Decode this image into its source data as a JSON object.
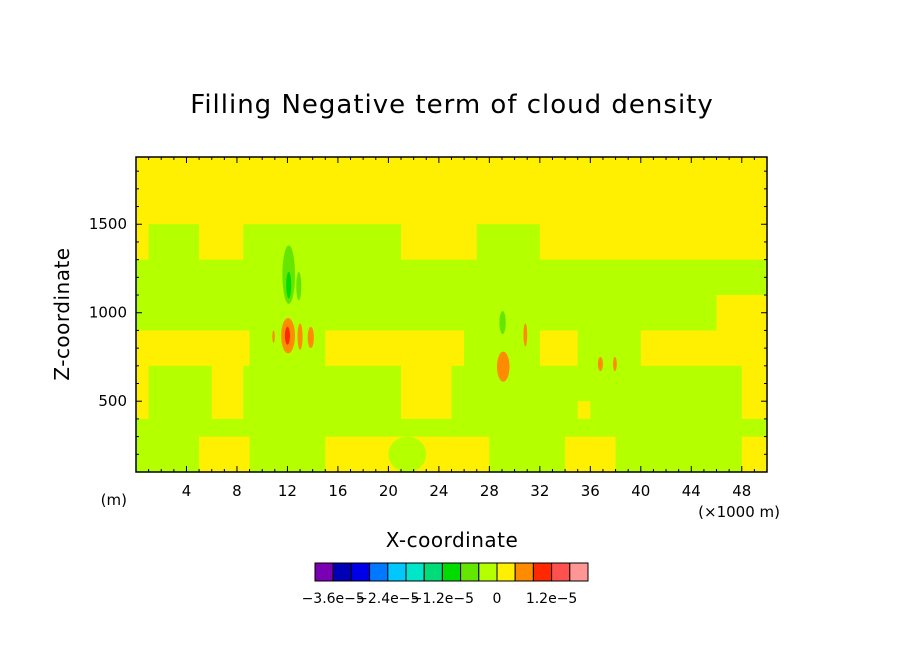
{
  "chart_data": {
    "type": "heatmap",
    "title": "Filling Negative term of cloud density",
    "xlabel": "X-coordinate",
    "ylabel": "Z-coordinate",
    "x_unit_label": "(×1000 m)",
    "y_unit_label": "(m)",
    "xlim": [
      0,
      50
    ],
    "ylim": [
      100,
      1880
    ],
    "x_ticks": [
      "4",
      "8",
      "12",
      "16",
      "20",
      "24",
      "28",
      "32",
      "36",
      "40",
      "44",
      "48"
    ],
    "x_tick_values": [
      4,
      8,
      12,
      16,
      20,
      24,
      28,
      32,
      36,
      40,
      44,
      48
    ],
    "y_ticks": [
      "500",
      "1000",
      "1500"
    ],
    "y_tick_values": [
      500,
      1000,
      1500
    ],
    "background_level_color": "#ffef00",
    "colorbar": {
      "colors": [
        "#7a00b4",
        "#0000b4",
        "#0000e6",
        "#0078ff",
        "#00c8ff",
        "#00e6c8",
        "#00dc78",
        "#00dc00",
        "#64e600",
        "#b4ff00",
        "#ffef00",
        "#ff8c00",
        "#ff2800",
        "#ff5050",
        "#ff9696"
      ],
      "labels": [
        "−3.6e−5",
        "−2.4e−5",
        "−1.2e−5",
        "0",
        "1.2e−5"
      ],
      "label_after_box": [
        1,
        4,
        7,
        10,
        13
      ]
    },
    "regions": [
      {
        "level": "#b4ff00",
        "x": [
          0,
          50
        ],
        "z": [
          1100,
          1300
        ]
      },
      {
        "level": "#b4ff00",
        "x": [
          1,
          5
        ],
        "z": [
          1100,
          1500
        ]
      },
      {
        "level": "#b4ff00",
        "x": [
          8.5,
          21
        ],
        "z": [
          1100,
          1500
        ]
      },
      {
        "level": "#b4ff00",
        "x": [
          27,
          32
        ],
        "z": [
          1100,
          1500
        ]
      },
      {
        "level": "#b4ff00",
        "x": [
          0,
          46
        ],
        "z": [
          900,
          1100
        ]
      },
      {
        "level": "#b4ff00",
        "x": [
          9,
          15
        ],
        "z": [
          650,
          1100
        ]
      },
      {
        "level": "#b4ff00",
        "x": [
          26,
          32
        ],
        "z": [
          600,
          1050
        ]
      },
      {
        "level": "#b4ff00",
        "x": [
          35,
          40
        ],
        "z": [
          500,
          1000
        ]
      },
      {
        "level": "#b4ff00",
        "x": [
          1,
          6
        ],
        "z": [
          400,
          700
        ]
      },
      {
        "level": "#b4ff00",
        "x": [
          8.5,
          21
        ],
        "z": [
          400,
          700
        ]
      },
      {
        "level": "#b4ff00",
        "x": [
          25,
          35
        ],
        "z": [
          300,
          700
        ]
      },
      {
        "level": "#b4ff00",
        "x": [
          36,
          48
        ],
        "z": [
          300,
          700
        ]
      },
      {
        "level": "#b4ff00",
        "x": [
          0,
          50
        ],
        "z": [
          300,
          400
        ]
      },
      {
        "level": "#b4ff00",
        "x": [
          0,
          5
        ],
        "z": [
          100,
          300
        ]
      },
      {
        "level": "#b4ff00",
        "x": [
          9,
          15
        ],
        "z": [
          100,
          300
        ]
      },
      {
        "level": "#b4ff00",
        "x": [
          20,
          23
        ],
        "z": [
          100,
          300
        ]
      },
      {
        "level": "#b4ff00",
        "x": [
          28,
          34
        ],
        "z": [
          100,
          300
        ]
      },
      {
        "level": "#b4ff00",
        "x": [
          38,
          48
        ],
        "z": [
          100,
          300
        ]
      },
      {
        "level": "#64e600",
        "x": [
          11.6,
          12.6
        ],
        "z": [
          1050,
          1380
        ]
      },
      {
        "level": "#64e600",
        "x": [
          12.7,
          13.1
        ],
        "z": [
          1070,
          1230
        ]
      },
      {
        "level": "#64e600",
        "x": [
          28.8,
          29.3
        ],
        "z": [
          880,
          1010
        ]
      },
      {
        "level": "#00dc00",
        "x": [
          11.9,
          12.3
        ],
        "z": [
          1080,
          1230
        ]
      },
      {
        "level": "#ff8c00",
        "x": [
          11.5,
          12.6
        ],
        "z": [
          770,
          970
        ]
      },
      {
        "level": "#ff8c00",
        "x": [
          12.8,
          13.2
        ],
        "z": [
          790,
          940
        ]
      },
      {
        "level": "#ff8c00",
        "x": [
          13.6,
          14.1
        ],
        "z": [
          800,
          920
        ]
      },
      {
        "level": "#ff8c00",
        "x": [
          10.8,
          11.0
        ],
        "z": [
          830,
          900
        ]
      },
      {
        "level": "#ff8c00",
        "x": [
          28.6,
          29.6
        ],
        "z": [
          610,
          780
        ]
      },
      {
        "level": "#ff8c00",
        "x": [
          30.7,
          31.0
        ],
        "z": [
          810,
          940
        ]
      },
      {
        "level": "#ff8c00",
        "x": [
          36.6,
          37.0
        ],
        "z": [
          670,
          750
        ]
      },
      {
        "level": "#ff8c00",
        "x": [
          37.8,
          38.1
        ],
        "z": [
          670,
          750
        ]
      },
      {
        "level": "#ff2800",
        "x": [
          11.8,
          12.2
        ],
        "z": [
          820,
          920
        ]
      }
    ]
  }
}
